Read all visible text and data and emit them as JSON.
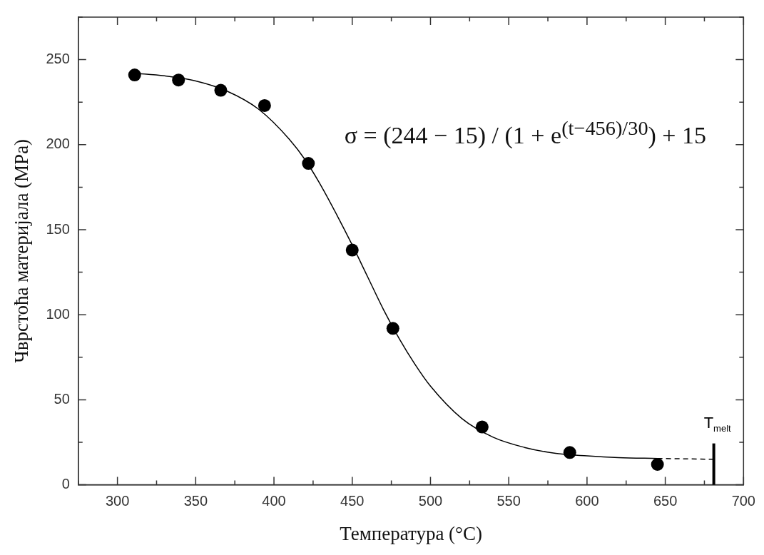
{
  "chart_data": {
    "type": "scatter",
    "xlabel": "Температура (°C)",
    "ylabel": "Чврстоћа материјала (MPa)",
    "xlim": [
      275,
      700
    ],
    "ylim": [
      0,
      275
    ],
    "xticks": [
      {
        "value": 275,
        "label": null
      },
      300,
      {
        "value": 325,
        "label": null
      },
      350,
      {
        "value": 375,
        "label": null
      },
      400,
      {
        "value": 425,
        "label": null
      },
      450,
      {
        "value": 475,
        "label": null
      },
      500,
      {
        "value": 525,
        "label": null
      },
      550,
      {
        "value": 575,
        "label": null
      },
      600,
      {
        "value": 625,
        "label": null
      },
      650,
      {
        "value": 675,
        "label": null
      },
      700
    ],
    "yticks": [
      0,
      {
        "value": 25,
        "label": null
      },
      50,
      {
        "value": 75,
        "label": null
      },
      100,
      {
        "value": 125,
        "label": null
      },
      150,
      {
        "value": 175,
        "label": null
      },
      200,
      {
        "value": 225,
        "label": null
      },
      250,
      {
        "value": 275,
        "label": null
      }
    ],
    "grid": false,
    "marker": "circle",
    "series": [
      {
        "type": "scatter",
        "color": "#000000",
        "x": [
          311,
          339,
          366,
          394,
          422,
          450,
          476,
          533,
          589,
          645
        ],
        "values": [
          241,
          238,
          232,
          223,
          189,
          138,
          92,
          34,
          19,
          12
        ]
      },
      {
        "type": "line",
        "color": "#000000",
        "marker": "none",
        "line_style": "solid",
        "x": [
          311,
          330,
          350,
          370,
          390,
          410,
          420,
          430,
          440,
          450,
          460,
          470,
          480,
          490,
          500,
          520,
          540,
          560,
          580,
          600,
          620,
          645
        ],
        "values": [
          242,
          240.5,
          237.5,
          231.5,
          221,
          203,
          191,
          176,
          159,
          141,
          122,
          103,
          86,
          71,
          58,
          39,
          28,
          22,
          18.5,
          17,
          16,
          15.5
        ]
      },
      {
        "type": "line",
        "color": "#000000",
        "marker": "none",
        "line_style": "dashed",
        "x": [
          645,
          681
        ],
        "values": [
          15.5,
          15
        ]
      }
    ],
    "ref_lines": [
      {
        "axis": "x",
        "value": 681,
        "label": "T$_{melt}$",
        "color": "#000000"
      }
    ],
    "annotations": [
      "σ = (244 − 15) / (1 + e$^{(t−456)/30}$) + 15"
    ]
  }
}
